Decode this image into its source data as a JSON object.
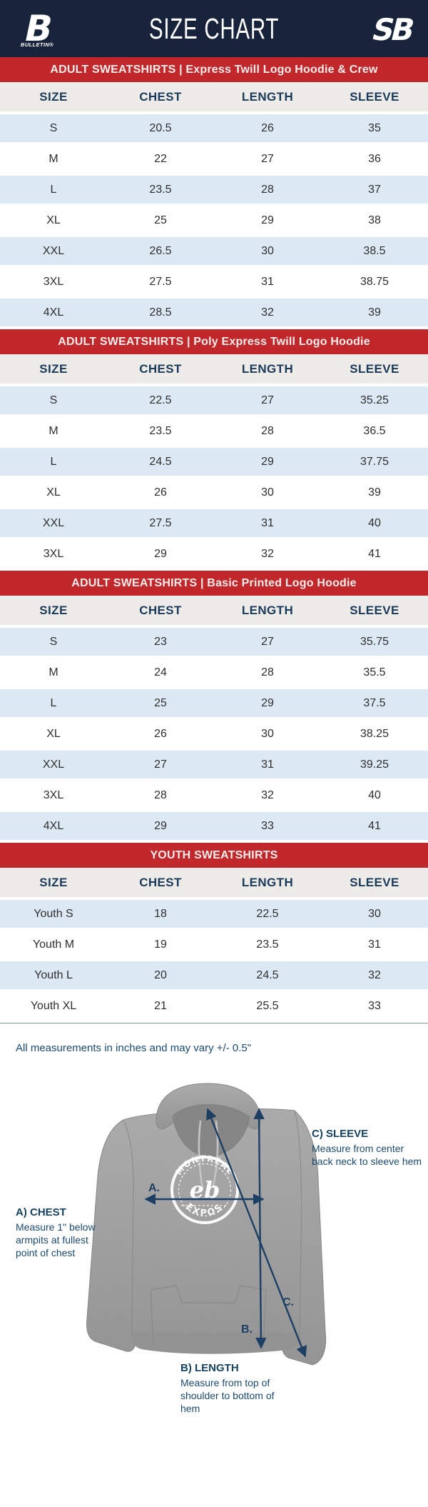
{
  "header": {
    "title": "SIZE CHART",
    "left_logo": {
      "letter": "B",
      "label": "BULLETIN®"
    },
    "right_logo": {
      "text": "SB"
    }
  },
  "columns": [
    "SIZE",
    "CHEST",
    "LENGTH",
    "SLEEVE"
  ],
  "tables": [
    {
      "banner": "ADULT SWEATSHIRTS | Express Twill Logo Hoodie & Crew",
      "rows": [
        [
          "S",
          "20.5",
          "26",
          "35"
        ],
        [
          "M",
          "22",
          "27",
          "36"
        ],
        [
          "L",
          "23.5",
          "28",
          "37"
        ],
        [
          "XL",
          "25",
          "29",
          "38"
        ],
        [
          "XXL",
          "26.5",
          "30",
          "38.5"
        ],
        [
          "3XL",
          "27.5",
          "31",
          "38.75"
        ],
        [
          "4XL",
          "28.5",
          "32",
          "39"
        ]
      ]
    },
    {
      "banner": "ADULT SWEATSHIRTS | Poly Express Twill Logo Hoodie",
      "rows": [
        [
          "S",
          "22.5",
          "27",
          "35.25"
        ],
        [
          "M",
          "23.5",
          "28",
          "36.5"
        ],
        [
          "L",
          "24.5",
          "29",
          "37.75"
        ],
        [
          "XL",
          "26",
          "30",
          "39"
        ],
        [
          "XXL",
          "27.5",
          "31",
          "40"
        ],
        [
          "3XL",
          "29",
          "32",
          "41"
        ]
      ]
    },
    {
      "banner": "ADULT SWEATSHIRTS | Basic Printed Logo Hoodie",
      "rows": [
        [
          "S",
          "23",
          "27",
          "35.75"
        ],
        [
          "M",
          "24",
          "28",
          "35.5"
        ],
        [
          "L",
          "25",
          "29",
          "37.5"
        ],
        [
          "XL",
          "26",
          "30",
          "38.25"
        ],
        [
          "XXL",
          "27",
          "31",
          "39.25"
        ],
        [
          "3XL",
          "28",
          "32",
          "40"
        ],
        [
          "4XL",
          "29",
          "33",
          "41"
        ]
      ]
    },
    {
      "banner": "YOUTH SWEATSHIRTS",
      "rows": [
        [
          "Youth S",
          "18",
          "22.5",
          "30"
        ],
        [
          "Youth M",
          "19",
          "23.5",
          "31"
        ],
        [
          "Youth L",
          "20",
          "24.5",
          "32"
        ],
        [
          "Youth XL",
          "21",
          "25.5",
          "33"
        ]
      ]
    }
  ],
  "note": "All measurements in inches and may vary +/- 0.5\"",
  "diagram": {
    "chest_label": {
      "title": "A) CHEST",
      "desc": "Measure 1\" below armpits at fullest point of chest"
    },
    "length_label": {
      "title": "B) LENGTH",
      "desc": "Measure from top of shoulder to bottom of hem"
    },
    "sleeve_label": {
      "title": "C) SLEEVE",
      "desc": "Measure from center back neck to sleeve hem"
    },
    "arrow_letters": {
      "a": "A.",
      "b": "B.",
      "c": "C."
    },
    "logo": {
      "top": "MONTRÉAL",
      "bottom": "EXPOS",
      "monogram": "eb"
    }
  },
  "colors": {
    "header_bg": "#16233a",
    "banner_red": "#c0282c",
    "row_blue": "#dce9f5",
    "header_row_bg": "#eeece9",
    "heading_navy": "#1b3a5a",
    "label_blue": "#1c4a6e",
    "arrow_navy": "#1c3f63",
    "hoodie_gray": "#a8a8a8"
  }
}
